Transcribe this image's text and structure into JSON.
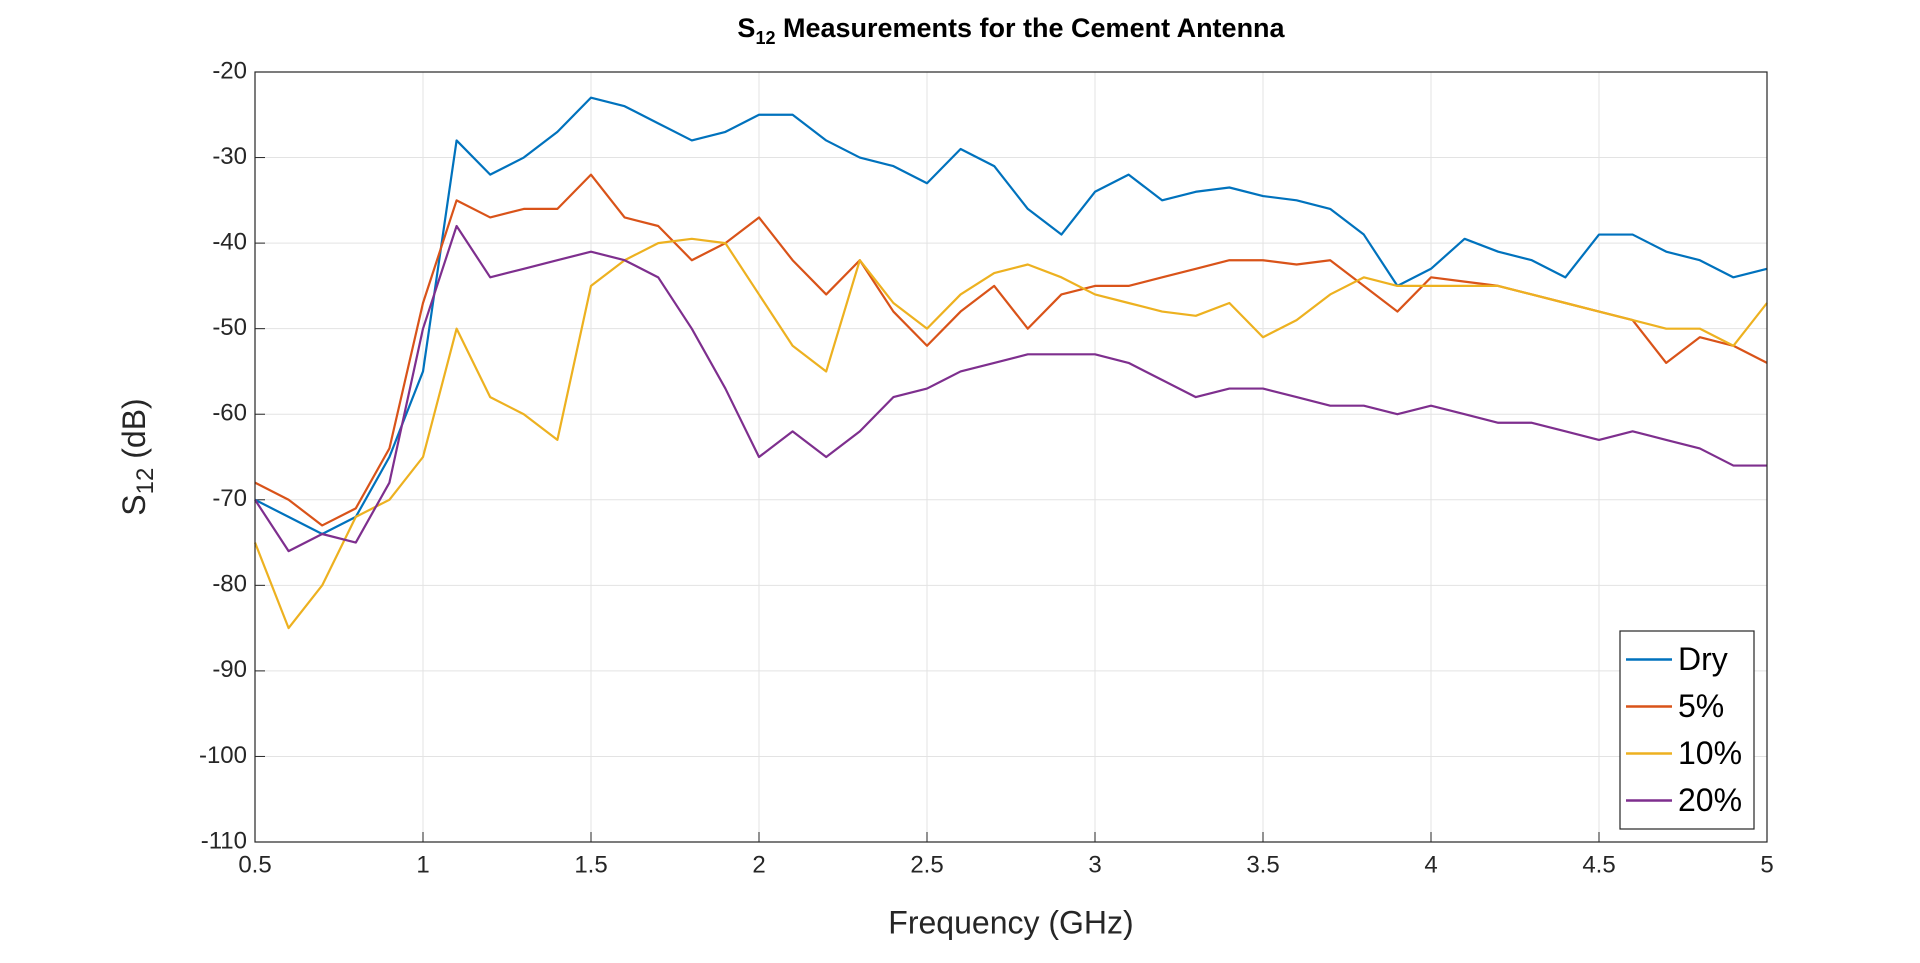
{
  "chart_data": {
    "type": "line",
    "title": [
      "S",
      "12",
      " Measurements for the Cement Antenna"
    ],
    "x_label": "Frequency (GHz)",
    "y_label": [
      "S",
      "12",
      " (dB)"
    ],
    "x": [
      0.5,
      0.6,
      0.7,
      0.8,
      0.9,
      1.0,
      1.1,
      1.2,
      1.3,
      1.4,
      1.5,
      1.6,
      1.7,
      1.8,
      1.9,
      2.0,
      2.1,
      2.2,
      2.3,
      2.4,
      2.5,
      2.6,
      2.7,
      2.8,
      2.9,
      3.0,
      3.1,
      3.2,
      3.3,
      3.4,
      3.5,
      3.6,
      3.7,
      3.8,
      3.9,
      4.0,
      4.1,
      4.2,
      4.3,
      4.4,
      4.5,
      4.6,
      4.7,
      4.8,
      4.9,
      5.0
    ],
    "series": [
      {
        "name": "Dry",
        "color": "#0072bd",
        "values": [
          -70,
          -72,
          -74,
          -72,
          -65,
          -55,
          -28,
          -32,
          -30,
          -27,
          -23,
          -24,
          -26,
          -28,
          -27,
          -25,
          -25,
          -28,
          -30,
          -31,
          -33,
          -29,
          -31,
          -36,
          -39,
          -34,
          -32,
          -35,
          -34,
          -33.5,
          -34.5,
          -35,
          -36,
          -39,
          -45,
          -43,
          -39.5,
          -41,
          -42,
          -44,
          -39,
          -39,
          -41,
          -42,
          -44,
          -43
        ]
      },
      {
        "name": "5%",
        "color": "#d95319",
        "values": [
          -68,
          -70,
          -73,
          -71,
          -64,
          -47,
          -35,
          -37,
          -36,
          -36,
          -32,
          -37,
          -38,
          -42,
          -40,
          -37,
          -42,
          -46,
          -42,
          -48,
          -52,
          -48,
          -45,
          -50,
          -46,
          -45,
          -45,
          -44,
          -43,
          -42,
          -42,
          -42.5,
          -42,
          -45,
          -48,
          -44,
          -44.5,
          -45,
          -46,
          -47,
          -48,
          -49,
          -54,
          -51,
          -52,
          -54
        ]
      },
      {
        "name": "10%",
        "color": "#edb120",
        "values": [
          -75,
          -85,
          -80,
          -72,
          -70,
          -65,
          -50,
          -58,
          -60,
          -63,
          -45,
          -42,
          -40,
          -39.5,
          -40,
          -46,
          -52,
          -55,
          -42,
          -47,
          -50,
          -46,
          -43.5,
          -42.5,
          -44,
          -46,
          -47,
          -48,
          -48.5,
          -47,
          -51,
          -49,
          -46,
          -44,
          -45,
          -45,
          -45,
          -45,
          -46,
          -47,
          -48,
          -49,
          -50,
          -50,
          -52,
          -47
        ]
      },
      {
        "name": "20%",
        "color": "#7e2f8e",
        "values": [
          -70,
          -76,
          -74,
          -75,
          -68,
          -50,
          -38,
          -44,
          -43,
          -42,
          -41,
          -42,
          -44,
          -50,
          -57,
          -65,
          -62,
          -65,
          -62,
          -58,
          -57,
          -55,
          -54,
          -53,
          -53,
          -53,
          -54,
          -56,
          -58,
          -57,
          -57,
          -58,
          -59,
          -59,
          -60,
          -59,
          -60,
          -61,
          -61,
          -62,
          -63,
          -62,
          -63,
          -64,
          -66,
          -66
        ]
      }
    ],
    "xlim": [
      0.5,
      5
    ],
    "xticks": [
      0.5,
      1,
      1.5,
      2,
      2.5,
      3,
      3.5,
      4,
      4.5,
      5
    ],
    "ylim": [
      -110,
      -20
    ],
    "yticks": [
      -110,
      -100,
      -90,
      -80,
      -70,
      -60,
      -50,
      -40,
      -30,
      -20
    ],
    "grid": true,
    "legend": "bottom-right"
  }
}
